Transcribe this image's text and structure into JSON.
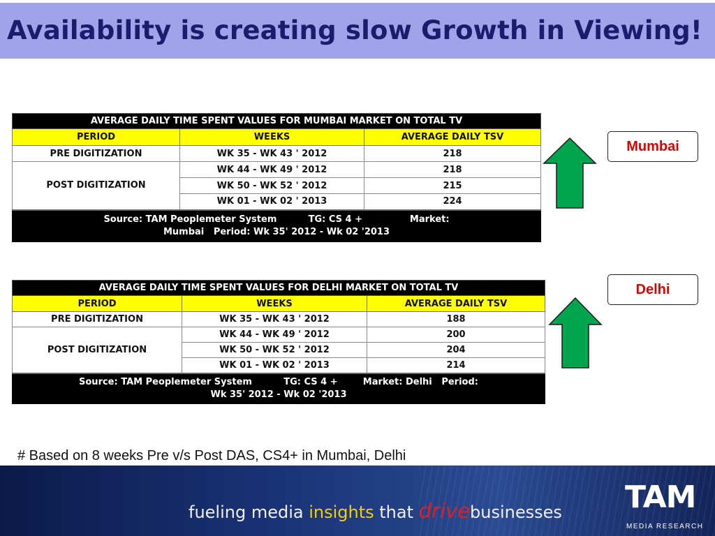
{
  "title": "Availability is creating slow Growth in Viewing!",
  "mumbai": {
    "table_title": "AVERAGE DAILY TIME SPENT VALUES FOR MUMBAI MARKET ON TOTAL TV",
    "headers": [
      "PERIOD",
      "WEEKS",
      "AVERAGE DAILY TSV"
    ],
    "pre_label": "PRE DIGITIZATION",
    "post_label": "POST DIGITIZATION",
    "rows": [
      {
        "weeks": "WK 35 - WK 43 '  2012",
        "tsv": "218"
      },
      {
        "weeks": "WK 44 - WK 49 '  2012",
        "tsv": "218"
      },
      {
        "weeks": "WK 50 - WK 52 '  2012",
        "tsv": "215"
      },
      {
        "weeks": "WK 01 - WK 02 '  2013",
        "tsv": "224"
      }
    ],
    "source_line1": "Source: TAM Peoplemeter System          TG: CS 4 +               Market:",
    "source_line2": "Mumbai   Period: Wk 35' 2012 - Wk 02 '2013",
    "city": "Mumbai"
  },
  "delhi": {
    "table_title": "AVERAGE DAILY TIME SPENT VALUES FOR DELHI  MARKET ON  TOTAL TV",
    "headers": [
      "PERIOD",
      "WEEKS",
      "AVERAGE DAILY TSV"
    ],
    "pre_label": "PRE DIGITIZATION",
    "post_label": "POST DIGITIZATION",
    "rows": [
      {
        "weeks": "WK 35 - WK 43 '  2012",
        "tsv": "188"
      },
      {
        "weeks": "WK 44 - WK 49 '  2012",
        "tsv": "200"
      },
      {
        "weeks": "WK 50 - WK 52 '  2012",
        "tsv": "204"
      },
      {
        "weeks": "WK 01 - WK 02 '  2013",
        "tsv": "214"
      }
    ],
    "source_line1": "Source: TAM Peoplemeter System          TG: CS 4 +        Market: Delhi   Period:",
    "source_line2": "Wk 35' 2012 - Wk 02 '2013",
    "city": "Delhi"
  },
  "footnote": "# Based on 8 weeks Pre v/s Post DAS, CS4+ in Mumbai, Delhi",
  "footer": {
    "tagline_part1": "fueling media ",
    "tagline_part2": "insights",
    "tagline_part3": " that ",
    "tagline_part4": "drive",
    "tagline_part5": "businesses",
    "logo_mark": "TAM",
    "logo_sub": "MEDIA RESEARCH"
  },
  "colors": {
    "title_bg": "#9fa3e8",
    "title_text": "#1c1c6e",
    "header_yellow": "#ffff00",
    "arrow_green": "#00a54f",
    "city_red": "#e00000"
  }
}
